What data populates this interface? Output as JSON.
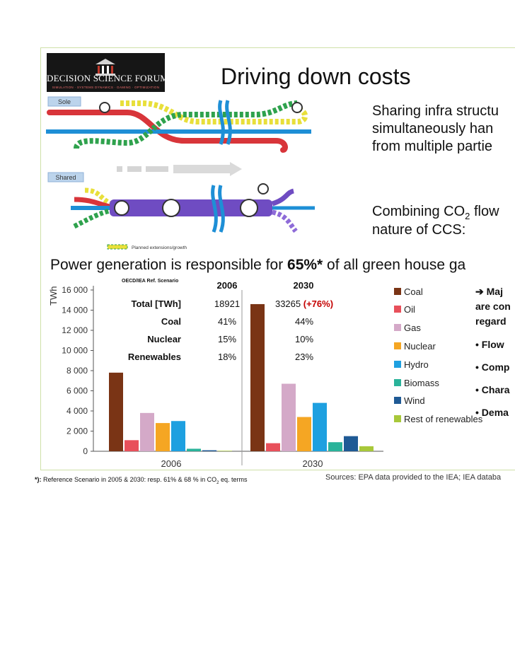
{
  "logo": {
    "title": "DECISION SCIENCE FORUM",
    "subtitle": "SIMULATION · SYSTEMS DYNAMICS · GAMING · OPTIMIZATION"
  },
  "title": "Driving down costs",
  "right_text": {
    "line1": "Sharing infra structu",
    "line2": "simultaneously han",
    "line3": "from multiple partie",
    "co2_pre": "Combining CO",
    "co2_sub": "2",
    "co2_post": " flow",
    "line5": "nature of CCS:"
  },
  "diagram": {
    "sole_label": "Sole",
    "shared_label": "Shared",
    "legend_label": "Planned extensions/growth"
  },
  "power_line": {
    "pre": "Power generation is responsible for ",
    "bold": "65%*",
    "post": " of all green house ga"
  },
  "table": {
    "note": "OECD/IEA Ref. Scenario",
    "col1": "2006",
    "col2": "2030",
    "rows": [
      {
        "label": "Total [TWh]",
        "v2006": "18921",
        "v2030": "33265",
        "extra": "(+76%)"
      },
      {
        "label": "Coal",
        "v2006": "41%",
        "v2030": "44%",
        "extra": ""
      },
      {
        "label": "Nuclear",
        "v2006": "15%",
        "v2030": "10%",
        "extra": ""
      },
      {
        "label": "Renewables",
        "v2006": "18%",
        "v2030": "23%",
        "extra": ""
      }
    ]
  },
  "chart_data": {
    "type": "bar",
    "ylabel": "TWh",
    "ylim": [
      0,
      16000
    ],
    "yticks": [
      "0",
      "2 000",
      "4 000",
      "6 000",
      "8 000",
      "10 000",
      "12 000",
      "14 000",
      "16 000"
    ],
    "categories": [
      "2006",
      "2030"
    ],
    "series": [
      {
        "name": "Coal",
        "color": "#7a3415",
        "values": [
          7800,
          14600
        ]
      },
      {
        "name": "Oil",
        "color": "#e8505b",
        "values": [
          1100,
          800
        ]
      },
      {
        "name": "Gas",
        "color": "#d4a9c8",
        "values": [
          3800,
          6700
        ]
      },
      {
        "name": "Nuclear",
        "color": "#f5a623",
        "values": [
          2800,
          3400
        ]
      },
      {
        "name": "Hydro",
        "color": "#1ea0e0",
        "values": [
          3000,
          4800
        ]
      },
      {
        "name": "Biomass",
        "color": "#2ab39a",
        "values": [
          250,
          900
        ]
      },
      {
        "name": "Wind",
        "color": "#1f5a95",
        "values": [
          100,
          1500
        ]
      },
      {
        "name": "Rest of renewables",
        "color": "#a8c83a",
        "values": [
          50,
          500
        ]
      }
    ],
    "legend_position": "right",
    "grid": false
  },
  "bullets": {
    "b0": "➔ Maj",
    "b1": "are con",
    "b2": "regard",
    "b3": "• Flow",
    "b4": "• Comp",
    "b5": "• Chara",
    "b6": "• Dema"
  },
  "footnote": {
    "star": "*):",
    "text": " Reference Scenario in 2005 & 2030: resp. 61% & 68 % in CO",
    "sub": "2",
    "post": " eq. terms"
  },
  "source": "Sources: EPA data provided to the IEA; IEA databa"
}
